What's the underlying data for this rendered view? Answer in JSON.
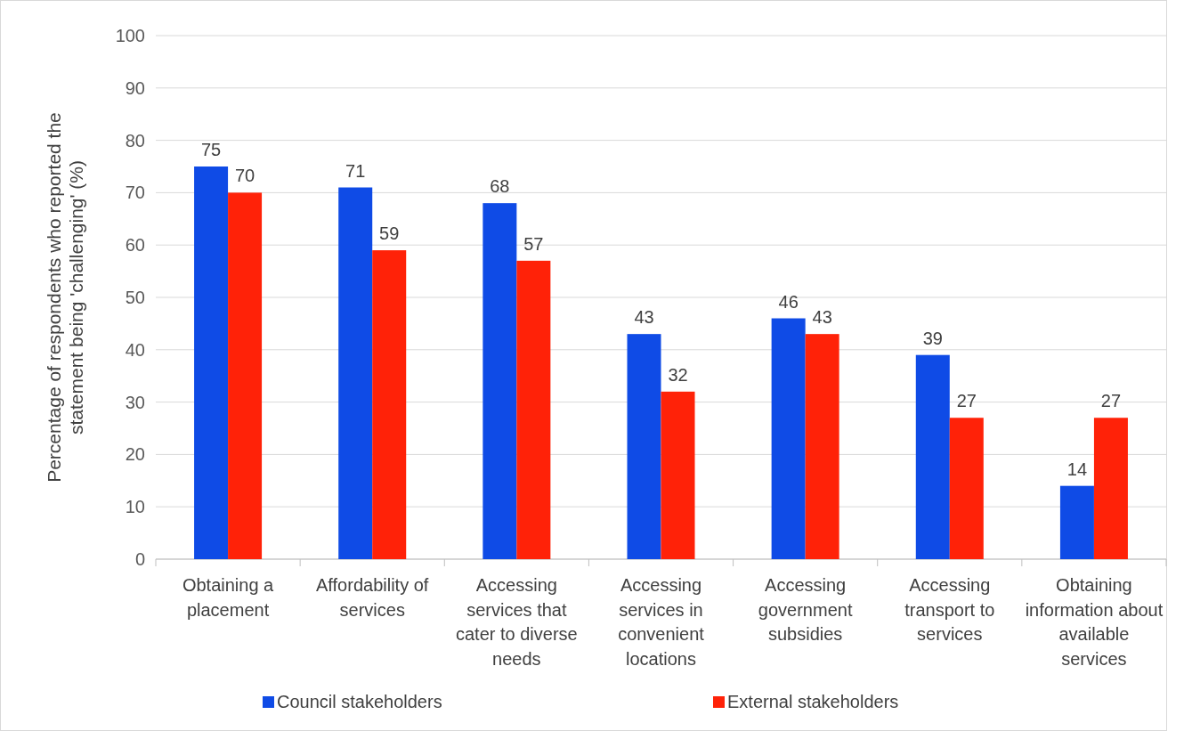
{
  "chart_data": {
    "type": "bar",
    "categories": [
      "Obtaining a placement",
      "Affordability of services",
      "Accessing services that cater to diverse needs",
      "Accessing services in convenient locations",
      "Accessing government subsidies",
      "Accessing transport to services",
      "Obtaining information about available services"
    ],
    "series": [
      {
        "name": "Council stakeholders",
        "color": "#0f4be6",
        "values": [
          75,
          71,
          68,
          43,
          46,
          39,
          14
        ]
      },
      {
        "name": "External stakeholders",
        "color": "#ff2208",
        "values": [
          70,
          59,
          57,
          32,
          43,
          27,
          27
        ]
      }
    ],
    "ylabel": "Percentage of respondents who reported the statement being 'challenging' (%)",
    "ylim": [
      0,
      100
    ],
    "yticks": [
      0,
      10,
      20,
      30,
      40,
      50,
      60,
      70,
      80,
      90,
      100
    ],
    "grid": "y",
    "legend": "bottom",
    "data_labels": true
  }
}
